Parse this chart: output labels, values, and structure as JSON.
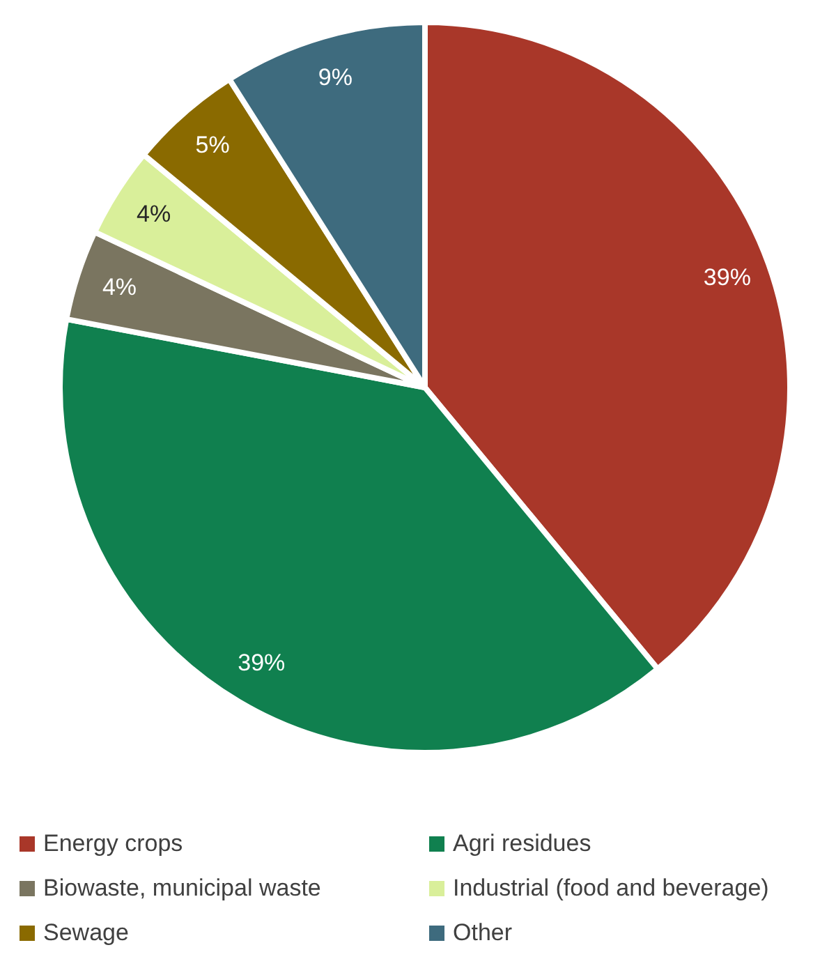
{
  "chart_data": {
    "type": "pie",
    "categories": [
      "Energy crops",
      "Agri residues",
      "Biowaste, municipal waste",
      "Industrial (food and beverage)",
      "Sewage",
      "Other"
    ],
    "values": [
      39,
      39,
      4,
      4,
      5,
      9
    ],
    "value_labels": [
      "39%",
      "39%",
      "4%",
      "4%",
      "5%",
      "9%"
    ],
    "colors": [
      "#a93729",
      "#10804f",
      "#7a7560",
      "#d9ef9a",
      "#8a6a00",
      "#3e6b7e"
    ],
    "legend": "bottom"
  }
}
